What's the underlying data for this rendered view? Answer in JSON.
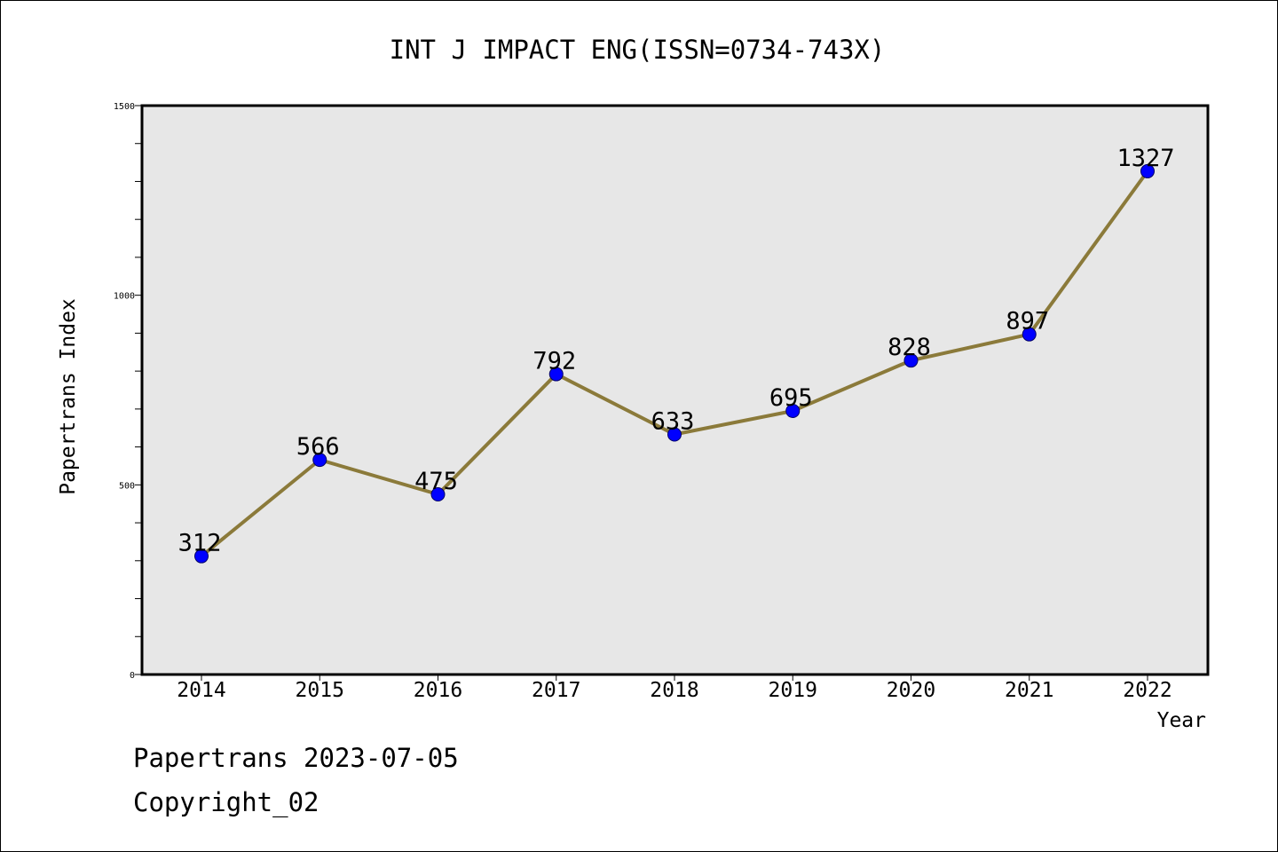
{
  "chart_data": {
    "type": "line",
    "title": "INT J IMPACT ENG(ISSN=0734-743X)",
    "xlabel": "Year",
    "ylabel": "Papertrans Index",
    "categories": [
      "2014",
      "2015",
      "2016",
      "2017",
      "2018",
      "2019",
      "2020",
      "2021",
      "2022"
    ],
    "series": [
      {
        "values": [
          312,
          566,
          475,
          792,
          633,
          695,
          828,
          897,
          1327
        ]
      }
    ],
    "ylim": [
      0,
      1500
    ],
    "yticks": [
      0,
      500,
      1000,
      1500
    ],
    "grid": false,
    "colors": {
      "line": "#8b7a3a",
      "marker": "#0000ff",
      "plot_background": "#e7e7e7"
    }
  },
  "footer": {
    "line1": "Papertrans 2023-07-05",
    "line2": "Copyright_02"
  }
}
